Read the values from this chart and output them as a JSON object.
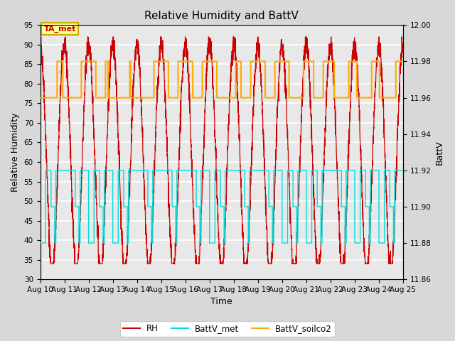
{
  "title": "Relative Humidity and BattV",
  "xlabel": "Time",
  "ylabel_left": "Relative Humidity",
  "ylabel_right": "BattV",
  "x_start": 10,
  "x_end": 25,
  "x_ticks": [
    10,
    11,
    12,
    13,
    14,
    15,
    16,
    17,
    18,
    19,
    20,
    21,
    22,
    23,
    24,
    25
  ],
  "x_tick_labels": [
    "Aug 10",
    "Aug 11",
    "Aug 12",
    "Aug 13",
    "Aug 14",
    "Aug 15",
    "Aug 16",
    "Aug 17",
    "Aug 18",
    "Aug 19",
    "Aug 20",
    "Aug 21",
    "Aug 22",
    "Aug 23",
    "Aug 24",
    "Aug 25"
  ],
  "ylim_left": [
    30,
    95
  ],
  "ylim_right": [
    11.86,
    12.0
  ],
  "yticks_left": [
    30,
    35,
    40,
    45,
    50,
    55,
    60,
    65,
    70,
    75,
    80,
    85,
    90,
    95
  ],
  "yticks_right": [
    11.86,
    11.88,
    11.9,
    11.92,
    11.94,
    11.96,
    11.98,
    12.0
  ],
  "rh_color": "#cc0000",
  "battv_met_color": "#00dddd",
  "battv_soilco2_color": "#ffaa00",
  "background_color": "#d8d8d8",
  "plot_bg_color": "#e8e8e8",
  "annotation_text": "TA_met",
  "annotation_bg": "#ffff99",
  "annotation_border": "#ccaa00",
  "legend_entries": [
    "RH",
    "BattV_met",
    "BattV_soilco2"
  ],
  "grid_color": "#ffffff",
  "title_fontsize": 11,
  "axis_label_fontsize": 9,
  "tick_fontsize": 7.5
}
